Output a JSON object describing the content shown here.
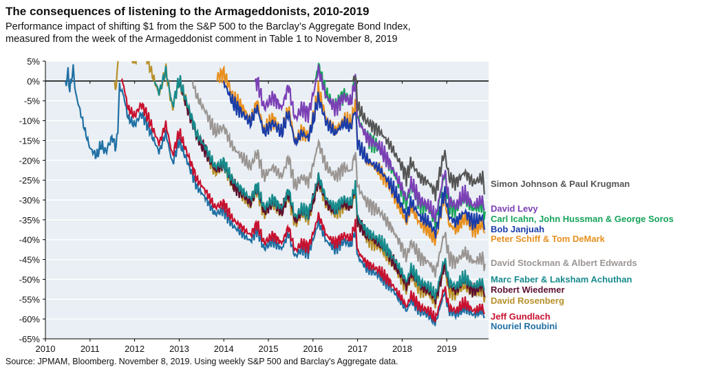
{
  "chart_data": {
    "type": "line",
    "title": "The consequences of listening to the Armageddonists, 2010-2019",
    "subtitle": [
      "Performance impact of shifting $1 from the S&P 500 to the Barclay’s Aggregate Bond Index,",
      "measured from the week of the Armageddonist comment in Table 1 to November 8, 2019"
    ],
    "source": "Source: JPMAM, Bloomberg. November 8, 2019. Using weekly S&P 500 and Barclay's Aggregate data.",
    "xlabel": "",
    "ylabel": "",
    "xlim": [
      2010,
      2019.9
    ],
    "ylim": [
      -65,
      5
    ],
    "x_ticks": [
      "2010",
      "2011",
      "2012",
      "2013",
      "2014",
      "2015",
      "2016",
      "2017",
      "2018",
      "2019"
    ],
    "y_ticks": [
      "5%",
      "0%",
      "-5%",
      "-10%",
      "-15%",
      "-20%",
      "-25%",
      "-30%",
      "-35%",
      "-40%",
      "-45%",
      "-50%",
      "-55%",
      "-60%",
      "-65%"
    ],
    "grid": "horizontal",
    "reference_series": {
      "name": "Nouriel Roubini",
      "x": [
        2010.45,
        2010.5,
        2010.55,
        2010.62,
        2010.68,
        2010.75,
        2010.9,
        2011.0,
        2011.15,
        2011.25,
        2011.35,
        2011.5,
        2011.58,
        2011.62,
        2011.66,
        2011.75,
        2011.85,
        2012.0,
        2012.15,
        2012.25,
        2012.4,
        2012.55,
        2012.7,
        2012.85,
        2013.0,
        2013.2,
        2013.4,
        2013.6,
        2013.8,
        2014.0,
        2014.1,
        2014.2,
        2014.4,
        2014.6,
        2014.75,
        2014.9,
        2015.1,
        2015.3,
        2015.45,
        2015.6,
        2015.75,
        2015.9,
        2016.05,
        2016.12,
        2016.3,
        2016.5,
        2016.7,
        2016.85,
        2016.95,
        2017.0,
        2017.2,
        2017.5,
        2017.75,
        2018.0,
        2018.1,
        2018.2,
        2018.4,
        2018.6,
        2018.75,
        2018.85,
        2018.95,
        2019.05,
        2019.2,
        2019.4,
        2019.6,
        2019.8,
        2019.86
      ],
      "values": [
        0,
        4,
        -1,
        5,
        -2,
        -5,
        -12,
        -16,
        -18,
        -15,
        -17,
        -13,
        -16,
        -12,
        0,
        -2,
        -8,
        -10,
        -7,
        -9,
        -13,
        -17,
        -12,
        -20,
        -14,
        -20,
        -26,
        -29,
        -33,
        -32,
        -34,
        -36,
        -38,
        -40,
        -37,
        -42,
        -40,
        -42,
        -38,
        -44,
        -42,
        -43,
        -38,
        -35,
        -40,
        -42,
        -40,
        -41,
        -37,
        -44,
        -47,
        -49,
        -52,
        -56,
        -58,
        -55,
        -58,
        -59,
        -61,
        -57,
        -53,
        -58,
        -59,
        -57,
        -59,
        -58,
        -60
      ]
    },
    "series": [
      {
        "name": "Simon Johnson & Paul Krugman",
        "color": "#555555",
        "start": 2016.9,
        "end_value": -27
      },
      {
        "name": "David Levy",
        "color": "#7b3fb5",
        "start": 2014.7,
        "end_value": -33
      },
      {
        "name": "Carl Icahn, John Hussman & George Soros",
        "color": "#16a35a",
        "start": 2016.05,
        "end_value": -34
      },
      {
        "name": "Bob Janjuah",
        "color": "#1a3ca8",
        "start": 2014.0,
        "end_value": -37
      },
      {
        "name": "Peter Schiff & Tom DeMark",
        "color": "#e8901f",
        "start": 2013.85,
        "end_value": -39
      },
      {
        "name": "David Stockman & Albert Edwards",
        "color": "#9a9592",
        "start": 2013.3,
        "end_value": -47
      },
      {
        "name": "Marc Faber & Laksham Achuthan",
        "color": "#178a8c",
        "start": 2012.45,
        "end_value": -53
      },
      {
        "name": "Robert Wiedemer",
        "color": "#5c1030",
        "start": 2013.0,
        "end_value": -54
      },
      {
        "name": "David Rosenberg",
        "color": "#b8902a",
        "start": 2011.55,
        "end_value": -55
      },
      {
        "name": "Jeff Gundlach",
        "color": "#c8102e",
        "start": 2011.7,
        "end_value": -59
      },
      {
        "name": "Nouriel Roubini",
        "color": "#1f6fa3",
        "start": 2010.45,
        "end_value": -60
      }
    ]
  }
}
